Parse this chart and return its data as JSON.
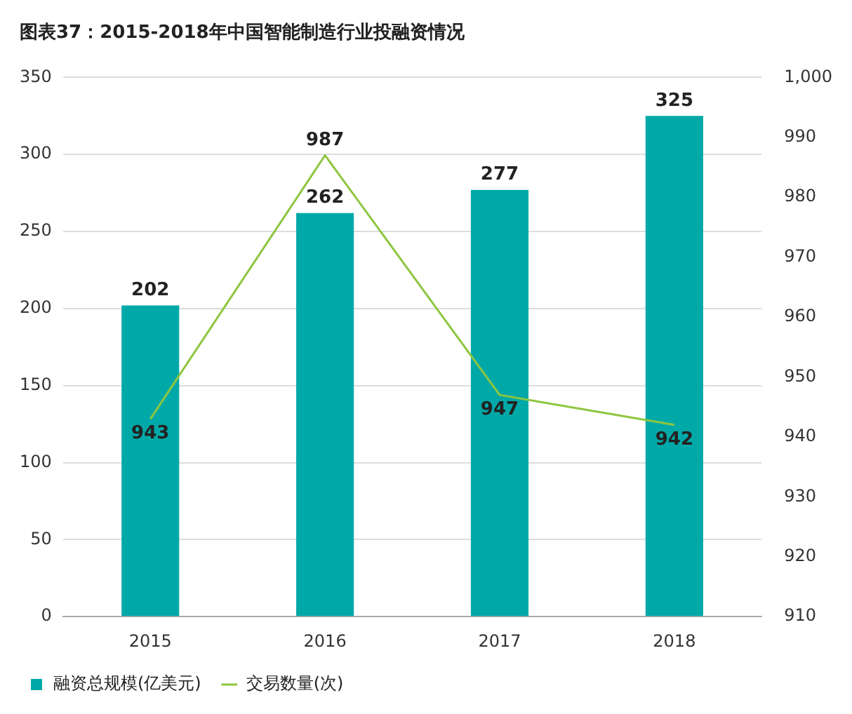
{
  "chart_data": {
    "type": "bar",
    "title": "图表37：2015-2018年中国智能制造行业投融资情况",
    "categories": [
      "2015",
      "2016",
      "2017",
      "2018"
    ],
    "series": [
      {
        "name": "融资总规模(亿美元)",
        "color": "#00a9a8",
        "values": [
          202,
          262,
          277,
          325
        ]
      },
      {
        "name": "交易数量(次)",
        "type": "line",
        "axis": "y2",
        "color": "#8dc63f",
        "values": [
          943,
          987,
          947,
          942
        ]
      }
    ],
    "ylim": [
      0,
      350
    ],
    "yticks": [
      0,
      50,
      100,
      150,
      200,
      250,
      300,
      350
    ],
    "y2lim": [
      910,
      1000
    ],
    "y2ticks": [
      910,
      920,
      930,
      940,
      950,
      960,
      970,
      980,
      990,
      {
        "value": 1000,
        "label": "1,000"
      }
    ],
    "grid": "y",
    "legend": "bottom left",
    "marker": "none",
    "data_labels": true
  }
}
